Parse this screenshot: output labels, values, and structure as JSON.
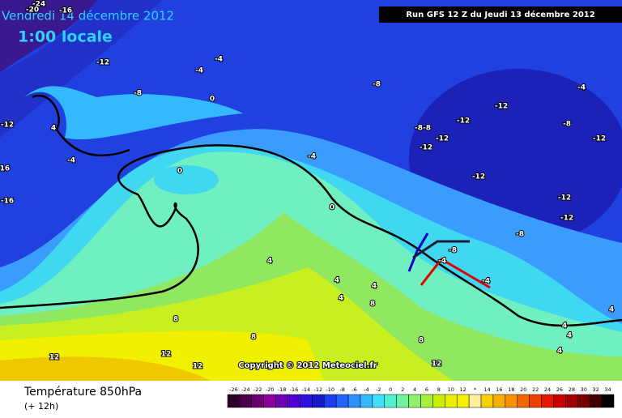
{
  "header": {
    "date": "Vendredi 14 décembre 2012",
    "time": "1:00 locale",
    "run": "Run GFS 12 Z du Jeudi 13 décembre 2012"
  },
  "footer": {
    "title": "Température 850hPa",
    "lead": "(+ 12h)",
    "copyright": "Copyright © 2012 Meteociel.fr"
  },
  "legend": {
    "labels": [
      "-26",
      "-24",
      "-22",
      "-20",
      "-18",
      "-16",
      "-14",
      "-12",
      "-10",
      "-8",
      "-6",
      "-4",
      "-2",
      "0",
      "2",
      "4",
      "6",
      "8",
      "10",
      "12",
      "*",
      "14",
      "16",
      "18",
      "20",
      "22",
      "24",
      "26",
      "28",
      "30",
      "32",
      "34"
    ],
    "colors": [
      "#2a0028",
      "#4a0048",
      "#6a0070",
      "#8a0098",
      "#7000b8",
      "#5000d0",
      "#3010e0",
      "#1818c8",
      "#1e3cf0",
      "#2464ff",
      "#2c90ff",
      "#34b8ff",
      "#40e0f8",
      "#50f0d0",
      "#70f0a0",
      "#90f070",
      "#a8f040",
      "#c8f000",
      "#e8f000",
      "#f8f000",
      "#fff0a0",
      "#f8d000",
      "#f8b000",
      "#f89000",
      "#f06800",
      "#f04000",
      "#e81800",
      "#c80000",
      "#a00000",
      "#780000",
      "#400000",
      "#000000"
    ]
  },
  "map_labels": [
    "-24",
    "-20",
    "-16",
    "-12",
    "-4",
    "-4",
    "-8",
    "0",
    "4",
    "-4",
    "-12",
    "-16",
    "-16",
    "0",
    "-4",
    "0",
    "-8",
    "-12",
    "-12",
    "-8-8",
    "-12",
    "-12",
    "-12",
    "-12",
    "-12",
    "-8",
    "-8",
    "-4",
    "-12",
    "4",
    "4",
    "4",
    "4",
    "8",
    "8",
    "8",
    "12",
    "12",
    "12",
    "8",
    "12",
    "4",
    "4",
    "-8",
    "-4",
    "-4",
    "4",
    "4"
  ]
}
